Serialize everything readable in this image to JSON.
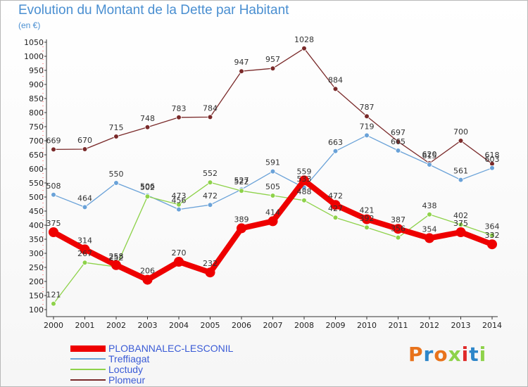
{
  "chart_data": {
    "type": "line",
    "title": "Evolution du Montant de la Dette par Habitant",
    "subtitle": "(en €)",
    "x": [
      "2000",
      "2001",
      "2002",
      "2003",
      "2004",
      "2005",
      "2006",
      "2007",
      "2008",
      "2009",
      "2010",
      "2011",
      "2012",
      "2013",
      "2014"
    ],
    "ylim": [
      100,
      1050
    ],
    "yticks": [
      100,
      150,
      200,
      250,
      300,
      350,
      400,
      450,
      500,
      550,
      600,
      650,
      700,
      750,
      800,
      850,
      900,
      950,
      1000,
      1050
    ],
    "grid": false,
    "legend_position": "bottom-left",
    "series": [
      {
        "name": "PLOBANNALEC-LESCONIL",
        "color": "#ee0000",
        "values": [
          375,
          314,
          258,
          206,
          270,
          232,
          389,
          414,
          559,
          472,
          421,
          387,
          354,
          375,
          332
        ]
      },
      {
        "name": "Treffiagat",
        "color": "#6aa2d8",
        "values": [
          508,
          464,
          550,
          506,
          456,
          472,
          527,
          591,
          533,
          663,
          719,
          665,
          615,
          561,
          603
        ]
      },
      {
        "name": "Loctudy",
        "color": "#8ed24a",
        "values": [
          121,
          267,
          252,
          502,
          473,
          552,
          522,
          505,
          488,
          427,
          392,
          356,
          438,
          402,
          364
        ]
      },
      {
        "name": "Plomeur",
        "color": "#7a2a2a",
        "values": [
          669,
          670,
          715,
          748,
          783,
          784,
          947,
          957,
          1028,
          884,
          787,
          697,
          620,
          700,
          618
        ]
      }
    ]
  },
  "branding": {
    "logo_text": "Proxiti",
    "colors": [
      "#e8731c",
      "#2d86c9",
      "#e8731c",
      "#8ed24a",
      "#e02a2a",
      "#2d86c9",
      "#8ed24a"
    ]
  }
}
